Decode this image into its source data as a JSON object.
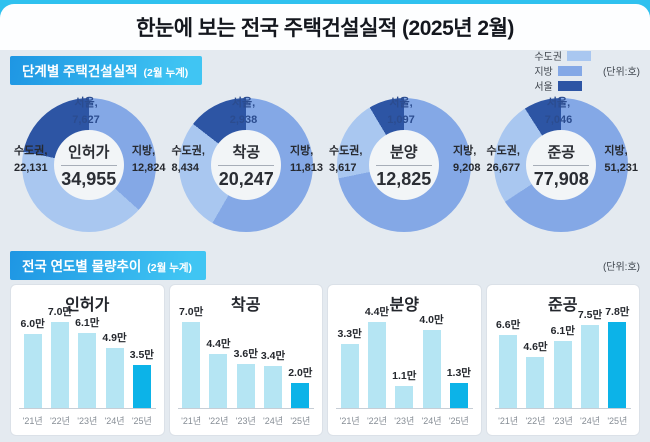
{
  "title": "한눈에 보는 전국 주택건설실적 (2025년 2월)",
  "section1": {
    "badge_title": "단계별 주택건설실적",
    "badge_subtitle": "(2월 누계)",
    "unit_label": "(단위:호)",
    "legend": [
      {
        "label": "수도권",
        "color": "#a9c7f0"
      },
      {
        "label": "지방",
        "color": "#84a8e6"
      },
      {
        "label": "서울",
        "color": "#2d55a4"
      }
    ]
  },
  "section2": {
    "badge_title": "전국 연도별 물량추이",
    "badge_subtitle": "(2월 누계)",
    "unit_label": "(단위:호)"
  },
  "colors": {
    "capital": "#a9c7f0",
    "local": "#84a8e6",
    "seoul": "#2d55a4",
    "bar_normal": "#b5e5f3",
    "bar_highlight": "#0cb3e8"
  },
  "chart_data": [
    {
      "type": "pie",
      "subtype": "donut",
      "title": "인허가",
      "total": 34955,
      "total_display": "34,955",
      "seoul": {
        "name": "서울,",
        "value": 7627,
        "display": "7,627"
      },
      "capital": {
        "name": "수도권,",
        "value": 22131,
        "display": "22,131"
      },
      "local": {
        "name": "지방,",
        "value": 12824,
        "display": "12,824"
      }
    },
    {
      "type": "pie",
      "subtype": "donut",
      "title": "착공",
      "total": 20247,
      "total_display": "20,247",
      "seoul": {
        "name": "서울,",
        "value": 2938,
        "display": "2,938"
      },
      "capital": {
        "name": "수도권,",
        "value": 8434,
        "display": "8,434"
      },
      "local": {
        "name": "지방,",
        "value": 11813,
        "display": "11,813"
      }
    },
    {
      "type": "pie",
      "subtype": "donut",
      "title": "분양",
      "total": 12825,
      "total_display": "12,825",
      "seoul": {
        "name": "서울,",
        "value": 1097,
        "display": "1,097"
      },
      "capital": {
        "name": "수도권,",
        "value": 3617,
        "display": "3,617"
      },
      "local": {
        "name": "지방,",
        "value": 9208,
        "display": "9,208"
      }
    },
    {
      "type": "pie",
      "subtype": "donut",
      "title": "준공",
      "total": 77908,
      "total_display": "77,908",
      "seoul": {
        "name": "서울,",
        "value": 7046,
        "display": "7,046"
      },
      "capital": {
        "name": "수도권,",
        "value": 26677,
        "display": "26,677"
      },
      "local": {
        "name": "지방,",
        "value": 51231,
        "display": "51,231"
      }
    },
    {
      "type": "bar",
      "title": "인허가",
      "unit": "만",
      "categories": [
        "'21년",
        "'22년",
        "'23년",
        "'24년",
        "'25년"
      ],
      "values": [
        6.0,
        7.0,
        6.1,
        4.9,
        3.5
      ],
      "labels": [
        "6.0만",
        "7.0만",
        "6.1만",
        "4.9만",
        "3.5만"
      ],
      "highlight_index": 4
    },
    {
      "type": "bar",
      "title": "착공",
      "unit": "만",
      "categories": [
        "'21년",
        "'22년",
        "'23년",
        "'24년",
        "'25년"
      ],
      "values": [
        7.0,
        4.4,
        3.6,
        3.4,
        2.0
      ],
      "labels": [
        "7.0만",
        "4.4만",
        "3.6만",
        "3.4만",
        "2.0만"
      ],
      "highlight_index": 4
    },
    {
      "type": "bar",
      "title": "분양",
      "unit": "만",
      "categories": [
        "'21년",
        "'22년",
        "'23년",
        "'24년",
        "'25년"
      ],
      "values": [
        3.3,
        4.4,
        1.1,
        4.0,
        1.3
      ],
      "labels": [
        "3.3만",
        "4.4만",
        "1.1만",
        "4.0만",
        "1.3만"
      ],
      "highlight_index": 4
    },
    {
      "type": "bar",
      "title": "준공",
      "unit": "만",
      "categories": [
        "'21년",
        "'22년",
        "'23년",
        "'24년",
        "'25년"
      ],
      "values": [
        6.6,
        4.6,
        6.1,
        7.5,
        7.8
      ],
      "labels": [
        "6.6만",
        "4.6만",
        "6.1만",
        "7.5만",
        "7.8만"
      ],
      "highlight_index": 4
    }
  ]
}
